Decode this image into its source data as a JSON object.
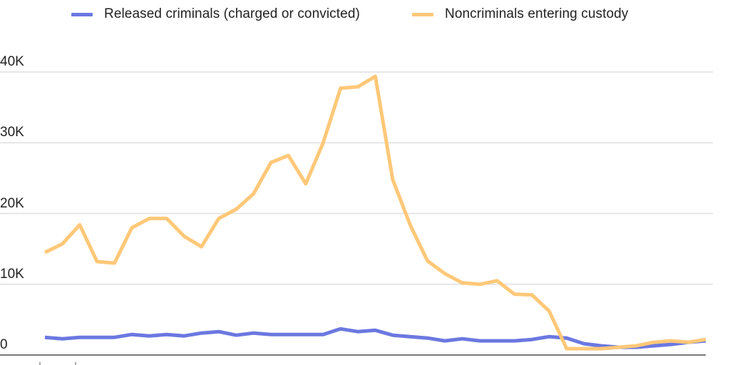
{
  "legend": [
    {
      "label": "Released criminals (charged or convicted)",
      "color": "#6b78e0"
    },
    {
      "label": "Noncriminals entering custody",
      "color": "#ffc878"
    }
  ],
  "yaxis": {
    "ticks": [
      {
        "label": "40K",
        "value": 40000
      },
      {
        "label": "30K",
        "value": 30000
      },
      {
        "label": "20K",
        "value": 20000
      },
      {
        "label": "10K",
        "value": 10000
      },
      {
        "label": "0",
        "value": 0
      }
    ]
  },
  "colors": {
    "grid": "#e6e6e6",
    "axis": "#777777",
    "released": "#6b78e0",
    "noncriminal": "#ffc878"
  },
  "chart_data": {
    "type": "line",
    "title": "",
    "xlabel": "",
    "ylabel": "",
    "ylim": [
      0,
      40000
    ],
    "grid": true,
    "legend_position": "top",
    "x": [
      0,
      1,
      2,
      3,
      4,
      5,
      6,
      7,
      8,
      9,
      10,
      11,
      12,
      13,
      14,
      15,
      16,
      17,
      18,
      19,
      20,
      21,
      22,
      23,
      24,
      25,
      26,
      27,
      28,
      29,
      30,
      31,
      32,
      33,
      34,
      35,
      36,
      37,
      38
    ],
    "series": [
      {
        "name": "Released criminals (charged or convicted)",
        "color": "#6b78e0",
        "values": [
          2500,
          2300,
          2500,
          2500,
          2500,
          2900,
          2700,
          2900,
          2700,
          3100,
          3300,
          2800,
          3100,
          2900,
          2900,
          2900,
          2900,
          3700,
          3300,
          3500,
          2800,
          2600,
          2400,
          2000,
          2300,
          2000,
          2000,
          2000,
          2200,
          2600,
          2400,
          1600,
          1300,
          1100,
          1100,
          1300,
          1500,
          1800,
          2000
        ]
      },
      {
        "name": "Noncriminals entering custody",
        "color": "#ffc878",
        "values": [
          14500,
          15700,
          18400,
          13200,
          13000,
          18000,
          19300,
          19300,
          16800,
          15300,
          19300,
          20600,
          22800,
          27200,
          28200,
          24200,
          30000,
          37700,
          37900,
          39400,
          24800,
          18400,
          13300,
          11500,
          10200,
          10000,
          10500,
          8600,
          8500,
          6200,
          900,
          900,
          900,
          1100,
          1300,
          1800,
          2000,
          1800,
          2200
        ]
      }
    ]
  }
}
